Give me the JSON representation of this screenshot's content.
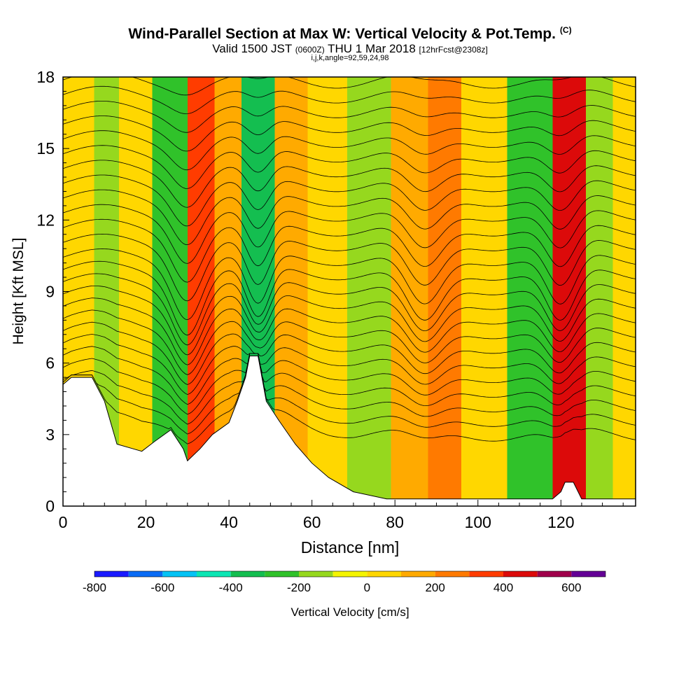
{
  "header": {
    "title": "Wind-Parallel Section at Max W: Vertical Velocity & Pot.Temp.",
    "copyright_mark": "(C)",
    "valid_prefix": "Valid 1500 JST",
    "valid_utc": "(0600Z)",
    "valid_date": "THU 1 Mar 2018",
    "forecast_info": "[12hrFcst@2308z]",
    "grid_info": "i,j,k,angle=92,59,24,98"
  },
  "chart_data": {
    "type": "heatmap",
    "xlabel": "Distance [nm]",
    "ylabel": "Height [Kft MSL]",
    "xlim": [
      0,
      138
    ],
    "ylim": [
      0,
      18
    ],
    "x_ticks": [
      0,
      20,
      40,
      60,
      80,
      100,
      120
    ],
    "y_ticks": [
      0,
      3,
      6,
      9,
      12,
      15,
      18
    ],
    "colorbar": {
      "label": "Vertical Velocity [cm/s]",
      "range": [
        -800,
        700
      ],
      "step": 100,
      "tick_values": [
        -800,
        -600,
        -400,
        -200,
        0,
        200,
        400,
        600
      ],
      "colors": [
        "#1a1aff",
        "#0a6cf5",
        "#05c3f5",
        "#0ce6b4",
        "#14be50",
        "#30c22a",
        "#96d81e",
        "#f5f500",
        "#ffd700",
        "#ffaa00",
        "#ff7a00",
        "#ff3c00",
        "#dc0a0a",
        "#a0004b",
        "#640096"
      ]
    },
    "velocity_bands": [
      {
        "center_x": 5,
        "value": 40
      },
      {
        "center_x": 10,
        "value": -150
      },
      {
        "center_x": 17,
        "value": 60
      },
      {
        "center_x": 26,
        "value": -230
      },
      {
        "center_x": 34,
        "value": 360
      },
      {
        "center_x": 39,
        "value": 160
      },
      {
        "center_x": 47,
        "value": -380
      },
      {
        "center_x": 55,
        "value": 160
      },
      {
        "center_x": 63,
        "value": 60
      },
      {
        "center_x": 74,
        "value": -160
      },
      {
        "center_x": 84,
        "value": 120
      },
      {
        "center_x": 92,
        "value": 210
      },
      {
        "center_x": 100,
        "value": 60
      },
      {
        "center_x": 114,
        "value": -210
      },
      {
        "center_x": 122,
        "value": 440
      },
      {
        "center_x": 130,
        "value": -150
      },
      {
        "center_x": 135,
        "value": 60
      }
    ],
    "terrain_kft": [
      [
        0,
        5.1
      ],
      [
        2,
        5.4
      ],
      [
        7,
        5.4
      ],
      [
        10,
        4.4
      ],
      [
        13,
        2.6
      ],
      [
        17,
        2.4
      ],
      [
        19,
        2.3
      ],
      [
        22,
        2.7
      ],
      [
        26,
        3.2
      ],
      [
        29,
        2.4
      ],
      [
        30,
        1.9
      ],
      [
        33,
        2.4
      ],
      [
        36,
        3.0
      ],
      [
        40,
        3.5
      ],
      [
        42,
        4.4
      ],
      [
        44,
        5.4
      ],
      [
        45,
        6.3
      ],
      [
        47,
        6.3
      ],
      [
        49,
        4.4
      ],
      [
        52,
        3.6
      ],
      [
        56,
        2.6
      ],
      [
        60,
        1.8
      ],
      [
        64,
        1.2
      ],
      [
        70,
        0.6
      ],
      [
        78,
        0.3
      ],
      [
        100,
        0.3
      ],
      [
        118,
        0.3
      ],
      [
        120,
        0.6
      ],
      [
        121,
        1.0
      ],
      [
        123,
        1.0
      ],
      [
        125,
        0.3
      ],
      [
        138,
        0.3
      ]
    ]
  }
}
